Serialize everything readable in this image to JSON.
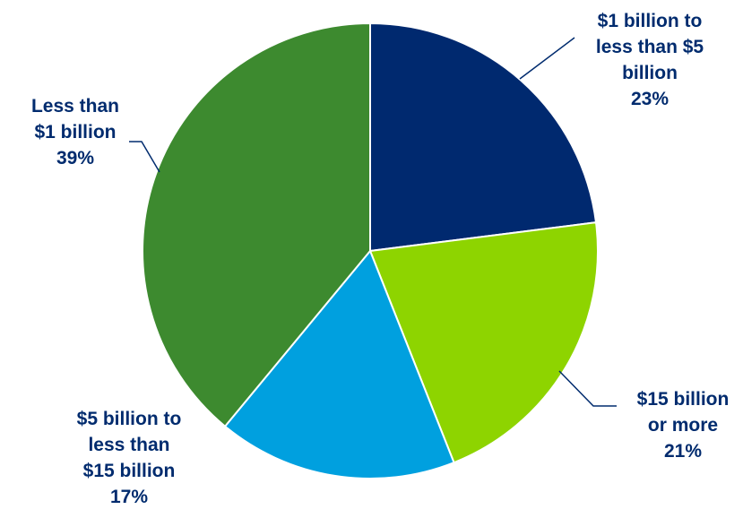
{
  "chart_data": {
    "type": "pie",
    "title": "",
    "start_angle_deg": 0,
    "direction": "clockwise",
    "label_color": "#002b6e",
    "slices": [
      {
        "label_lines": [
          "$1 billion to",
          "less than $5",
          "billion"
        ],
        "pct_label": "23%",
        "value": 23,
        "color": "#00296f"
      },
      {
        "label_lines": [
          "$15 billion",
          "or more"
        ],
        "pct_label": "21%",
        "value": 21,
        "color": "#8ed400"
      },
      {
        "label_lines": [
          "$5 billion to",
          "less than",
          "$15 billion"
        ],
        "pct_label": "17%",
        "value": 17,
        "color": "#00a0df"
      },
      {
        "label_lines": [
          "Less than",
          "$1 billion"
        ],
        "pct_label": "39%",
        "value": 39,
        "color": "#3d8a2f"
      }
    ]
  }
}
